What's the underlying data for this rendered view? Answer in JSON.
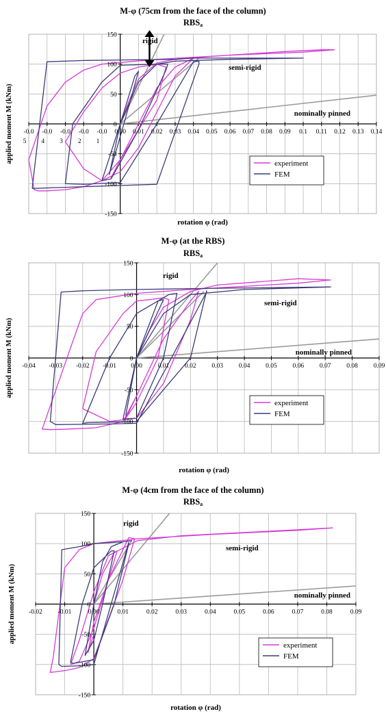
{
  "colors": {
    "experiment": "#d63ad6",
    "fem": "#3b3b78",
    "reference": "#9a9a9a",
    "grid": "#b8b8b8",
    "axis": "#000000"
  },
  "chart_data": [
    {
      "type": "line",
      "title": "M-φ (75cm from the face of the column)",
      "subtitle": "RBS",
      "subtitle_subscript": "a",
      "xlabel": "rotation φ (rad)",
      "ylabel": "applied moment M (kNm)",
      "xlim": [
        -0.05,
        0.14
      ],
      "ylim": [
        -150,
        150
      ],
      "x_ticks": [
        -0.05,
        -0.04,
        -0.03,
        -0.02,
        -0.01,
        0,
        0.01,
        0.02,
        0.03,
        0.04,
        0.05,
        0.06,
        0.07,
        0.08,
        0.09,
        0.1,
        0.11,
        0.12,
        0.13,
        0.14
      ],
      "x_tick_labels": [
        "-0.0",
        "-0.0",
        "-0.0",
        "-0.0",
        "-0.0",
        "0.00",
        "0.01",
        "0.02",
        "0.03",
        "0.04",
        "0.05",
        "0.06",
        "0.07",
        "0.08",
        "0.09",
        "0.1",
        "0.11",
        "0.12",
        "0.13",
        "0.14"
      ],
      "x_tick_labels_line2": [
        "5",
        "4",
        "3",
        "2",
        "1"
      ],
      "y_ticks": [
        -150,
        -100,
        -50,
        0,
        50,
        100,
        150
      ],
      "y_tick_labels": [
        "-150",
        "-100",
        "-50",
        "0",
        "50",
        "100",
        "150"
      ],
      "grid": true,
      "legend": "bottom-right",
      "legend_entries": [
        "experiment",
        "FEM"
      ],
      "annotations": [
        "rigid",
        "semi-rigid",
        "nominally pinned"
      ],
      "reference_lines": [
        {
          "label": "rigid",
          "x": [
            0.0,
            0.024
          ],
          "y": [
            0,
            150
          ]
        },
        {
          "label": "semi-rigid",
          "x": [
            0.0,
            0.043
          ],
          "y": [
            0,
            110
          ]
        },
        {
          "label": "nominally pinned",
          "x": [
            0.0,
            0.14
          ],
          "y": [
            0,
            48
          ]
        }
      ],
      "series": [
        {
          "name": "experiment",
          "x": [
            0,
            0.005,
            0.01,
            0.02,
            0.03,
            0.05,
            0.07,
            0.09,
            0.11,
            0.117,
            0.1,
            0.06,
            0.02,
            -0.01,
            -0.02,
            -0.03,
            -0.04,
            -0.05,
            -0.047,
            -0.045,
            -0.04,
            -0.03,
            -0.02,
            -0.01,
            0.0,
            0.01,
            0.02,
            0.03,
            0.04,
            0.03,
            0.02,
            0.01,
            0.0,
            -0.01,
            -0.02,
            -0.03,
            -0.02,
            -0.01,
            0.0,
            0.01,
            0.02,
            0.025,
            0.02,
            0.01,
            0.0,
            -0.005,
            0.0
          ],
          "y": [
            0,
            40,
            75,
            102,
            108,
            113,
            117,
            121,
            124,
            124,
            120,
            115,
            108,
            100,
            90,
            70,
            30,
            -60,
            -110,
            -112,
            -112,
            -110,
            -105,
            -95,
            -60,
            0,
            60,
            95,
            110,
            80,
            20,
            -40,
            -80,
            -95,
            -75,
            -30,
            20,
            60,
            85,
            95,
            100,
            95,
            40,
            -10,
            -60,
            -90,
            -60
          ]
        },
        {
          "name": "FEM",
          "x": [
            0,
            0.01,
            0.02,
            0.03,
            0.06,
            0.1,
            0.04,
            0.03,
            0.0,
            -0.02,
            -0.04,
            -0.044,
            -0.048,
            -0.048,
            -0.03,
            -0.01,
            0.0,
            0.02,
            0.043,
            0.043,
            0.04,
            0.02,
            0.0,
            -0.02,
            -0.03,
            -0.026,
            -0.01,
            0.0,
            0.02,
            0.026,
            0.025,
            0.01,
            -0.005,
            -0.01,
            0.0,
            0.008,
            0.01,
            0.002,
            -0.006,
            0.0
          ],
          "y": [
            0,
            70,
            100,
            105,
            108,
            110,
            110,
            108,
            107,
            106,
            104,
            0,
            -105,
            -108,
            -106,
            -104,
            -103,
            -101,
            100,
            105,
            104,
            0,
            -98,
            -101,
            -100,
            0,
            70,
            98,
            100,
            100,
            90,
            -10,
            -92,
            -95,
            0,
            80,
            88,
            0,
            -85,
            0
          ]
        }
      ]
    },
    {
      "type": "line",
      "title": "M-φ (at the RBS)",
      "subtitle": "RBS",
      "subtitle_subscript": "a",
      "xlabel": "rotation φ (rad)",
      "ylabel": "applied moment M (kNm)",
      "xlim": [
        -0.04,
        0.09
      ],
      "ylim": [
        -150,
        150
      ],
      "x_ticks": [
        -0.04,
        -0.03,
        -0.02,
        -0.01,
        0,
        0.01,
        0.02,
        0.03,
        0.04,
        0.05,
        0.06,
        0.07,
        0.08,
        0.09
      ],
      "x_tick_labels": [
        "-0.04",
        "-0.03",
        "-0.02",
        "-0.01",
        "0.00",
        "0.01",
        "0.02",
        "0.03",
        "0.04",
        "0.05",
        "0.06",
        "0.07",
        "0.08",
        "0.09"
      ],
      "y_ticks": [
        -150,
        -100,
        -50,
        0,
        50,
        100,
        150
      ],
      "y_tick_labels": [
        "-150",
        "-100",
        "-50",
        "0",
        "50",
        "100",
        "150"
      ],
      "grid": true,
      "legend": "bottom-right",
      "legend_entries": [
        "experiment",
        "FEM"
      ],
      "annotations": [
        "rigid",
        "semi-rigid",
        "nominally pinned"
      ],
      "reference_lines": [
        {
          "label": "rigid",
          "x": [
            0.0,
            0.03
          ],
          "y": [
            0,
            150
          ]
        },
        {
          "label": "semi-rigid",
          "x": [
            0.0,
            0.025
          ],
          "y": [
            0,
            105
          ]
        },
        {
          "label": "nominally pinned",
          "x": [
            0.0,
            0.09
          ],
          "y": [
            0,
            30
          ]
        }
      ],
      "series": [
        {
          "name": "experiment",
          "x": [
            0,
            0.005,
            0.01,
            0.02,
            0.03,
            0.045,
            0.06,
            0.072,
            0.06,
            0.04,
            0.02,
            0.0,
            -0.015,
            -0.02,
            -0.025,
            -0.034,
            -0.035,
            -0.032,
            -0.025,
            -0.015,
            -0.005,
            0.0,
            0.01,
            0.02,
            0.023,
            0.02,
            0.01,
            0.0,
            -0.01,
            -0.02,
            -0.015,
            -0.005,
            0.0,
            0.005,
            0.01,
            0.012,
            0.008,
            0.0,
            -0.004,
            0.0
          ],
          "y": [
            0,
            45,
            80,
            105,
            115,
            120,
            125,
            123,
            118,
            113,
            108,
            102,
            92,
            70,
            10,
            -100,
            -112,
            -113,
            -112,
            -110,
            -100,
            -60,
            30,
            90,
            105,
            60,
            -40,
            -95,
            -100,
            -80,
            10,
            70,
            90,
            92,
            95,
            92,
            0,
            -70,
            -95,
            -60
          ]
        },
        {
          "name": "FEM",
          "x": [
            0,
            0.01,
            0.02,
            0.04,
            0.072,
            0.03,
            0.0,
            -0.02,
            -0.028,
            -0.032,
            -0.03,
            -0.01,
            0.0,
            0.026,
            0.026,
            0.02,
            0.0,
            -0.018,
            -0.02,
            -0.01,
            0.0,
            0.012,
            0.015,
            0.01,
            0.0,
            -0.005,
            0.0,
            0.008,
            0.01,
            0.0,
            -0.004,
            0.0
          ],
          "y": [
            0,
            70,
            100,
            108,
            112,
            110,
            108,
            106,
            104,
            -100,
            -105,
            -104,
            -103,
            104,
            106,
            0,
            -100,
            -102,
            -103,
            0,
            70,
            100,
            102,
            0,
            -95,
            -96,
            0,
            90,
            92,
            0,
            -90,
            0
          ]
        }
      ]
    },
    {
      "type": "line",
      "title": "M-φ (4cm from the face of the column)",
      "subtitle": "RBS",
      "subtitle_subscript": "a",
      "xlabel": "rotation φ (rad)",
      "ylabel": "applied moment M (kNm)",
      "xlim": [
        -0.02,
        0.09
      ],
      "ylim": [
        -150,
        150
      ],
      "x_ticks": [
        -0.02,
        -0.01,
        0,
        0.01,
        0.02,
        0.03,
        0.04,
        0.05,
        0.06,
        0.07,
        0.08,
        0.09
      ],
      "x_tick_labels": [
        "-0.02",
        "-0.01",
        "0.00",
        "0.01",
        "0.02",
        "0.03",
        "0.04",
        "0.05",
        "0.06",
        "0.07",
        "0.08",
        "0.09"
      ],
      "y_ticks": [
        -150,
        -100,
        -50,
        0,
        50,
        100,
        150
      ],
      "y_tick_labels": [
        "-150",
        "-100",
        "-50",
        "0",
        "50",
        "100",
        "150"
      ],
      "grid": true,
      "legend": "bottom-right",
      "legend_entries": [
        "experiment",
        "FEM"
      ],
      "annotations": [
        "rigid",
        "semi-rigid",
        "nominally pinned"
      ],
      "reference_lines": [
        {
          "label": "rigid",
          "x": [
            0.0,
            0.026
          ],
          "y": [
            0,
            150
          ]
        },
        {
          "label": "semi-rigid",
          "x": [
            0.0,
            0.013
          ],
          "y": [
            0,
            105
          ]
        },
        {
          "label": "nominally pinned",
          "x": [
            0.0,
            0.09
          ],
          "y": [
            0,
            30
          ]
        }
      ],
      "series": [
        {
          "name": "experiment",
          "x": [
            0,
            0.003,
            0.007,
            0.015,
            0.03,
            0.05,
            0.07,
            0.082,
            0.07,
            0.04,
            0.015,
            0.0,
            -0.005,
            -0.01,
            -0.014,
            -0.015,
            -0.013,
            -0.01,
            -0.005,
            0.0,
            0.01,
            0.014,
            0.012,
            0.005,
            0.0,
            -0.005,
            -0.008,
            -0.005,
            0.0,
            0.005,
            0.008,
            0.005,
            0.0,
            -0.002,
            0.0
          ],
          "y": [
            0,
            50,
            85,
            105,
            113,
            118,
            123,
            126,
            122,
            115,
            108,
            100,
            90,
            60,
            -90,
            -113,
            -112,
            -110,
            -105,
            -90,
            40,
            108,
            110,
            40,
            -40,
            -95,
            -100,
            -60,
            20,
            80,
            88,
            40,
            -30,
            -80,
            -50
          ]
        },
        {
          "name": "FEM",
          "x": [
            0,
            0.003,
            0.006,
            0.01,
            0.013,
            0.01,
            0.0,
            -0.005,
            -0.011,
            -0.012,
            -0.011,
            -0.004,
            0.0,
            0.012,
            0.012,
            0.007,
            0.0,
            -0.007,
            -0.008,
            -0.004,
            0.0,
            0.006,
            0.007,
            0.003,
            0.0,
            -0.003,
            0.0
          ],
          "y": [
            0,
            70,
            95,
            103,
            105,
            103,
            100,
            95,
            90,
            -100,
            -103,
            -102,
            -100,
            102,
            100,
            0,
            -92,
            -98,
            -96,
            0,
            60,
            88,
            88,
            0,
            -60,
            -85,
            0
          ]
        }
      ]
    }
  ]
}
